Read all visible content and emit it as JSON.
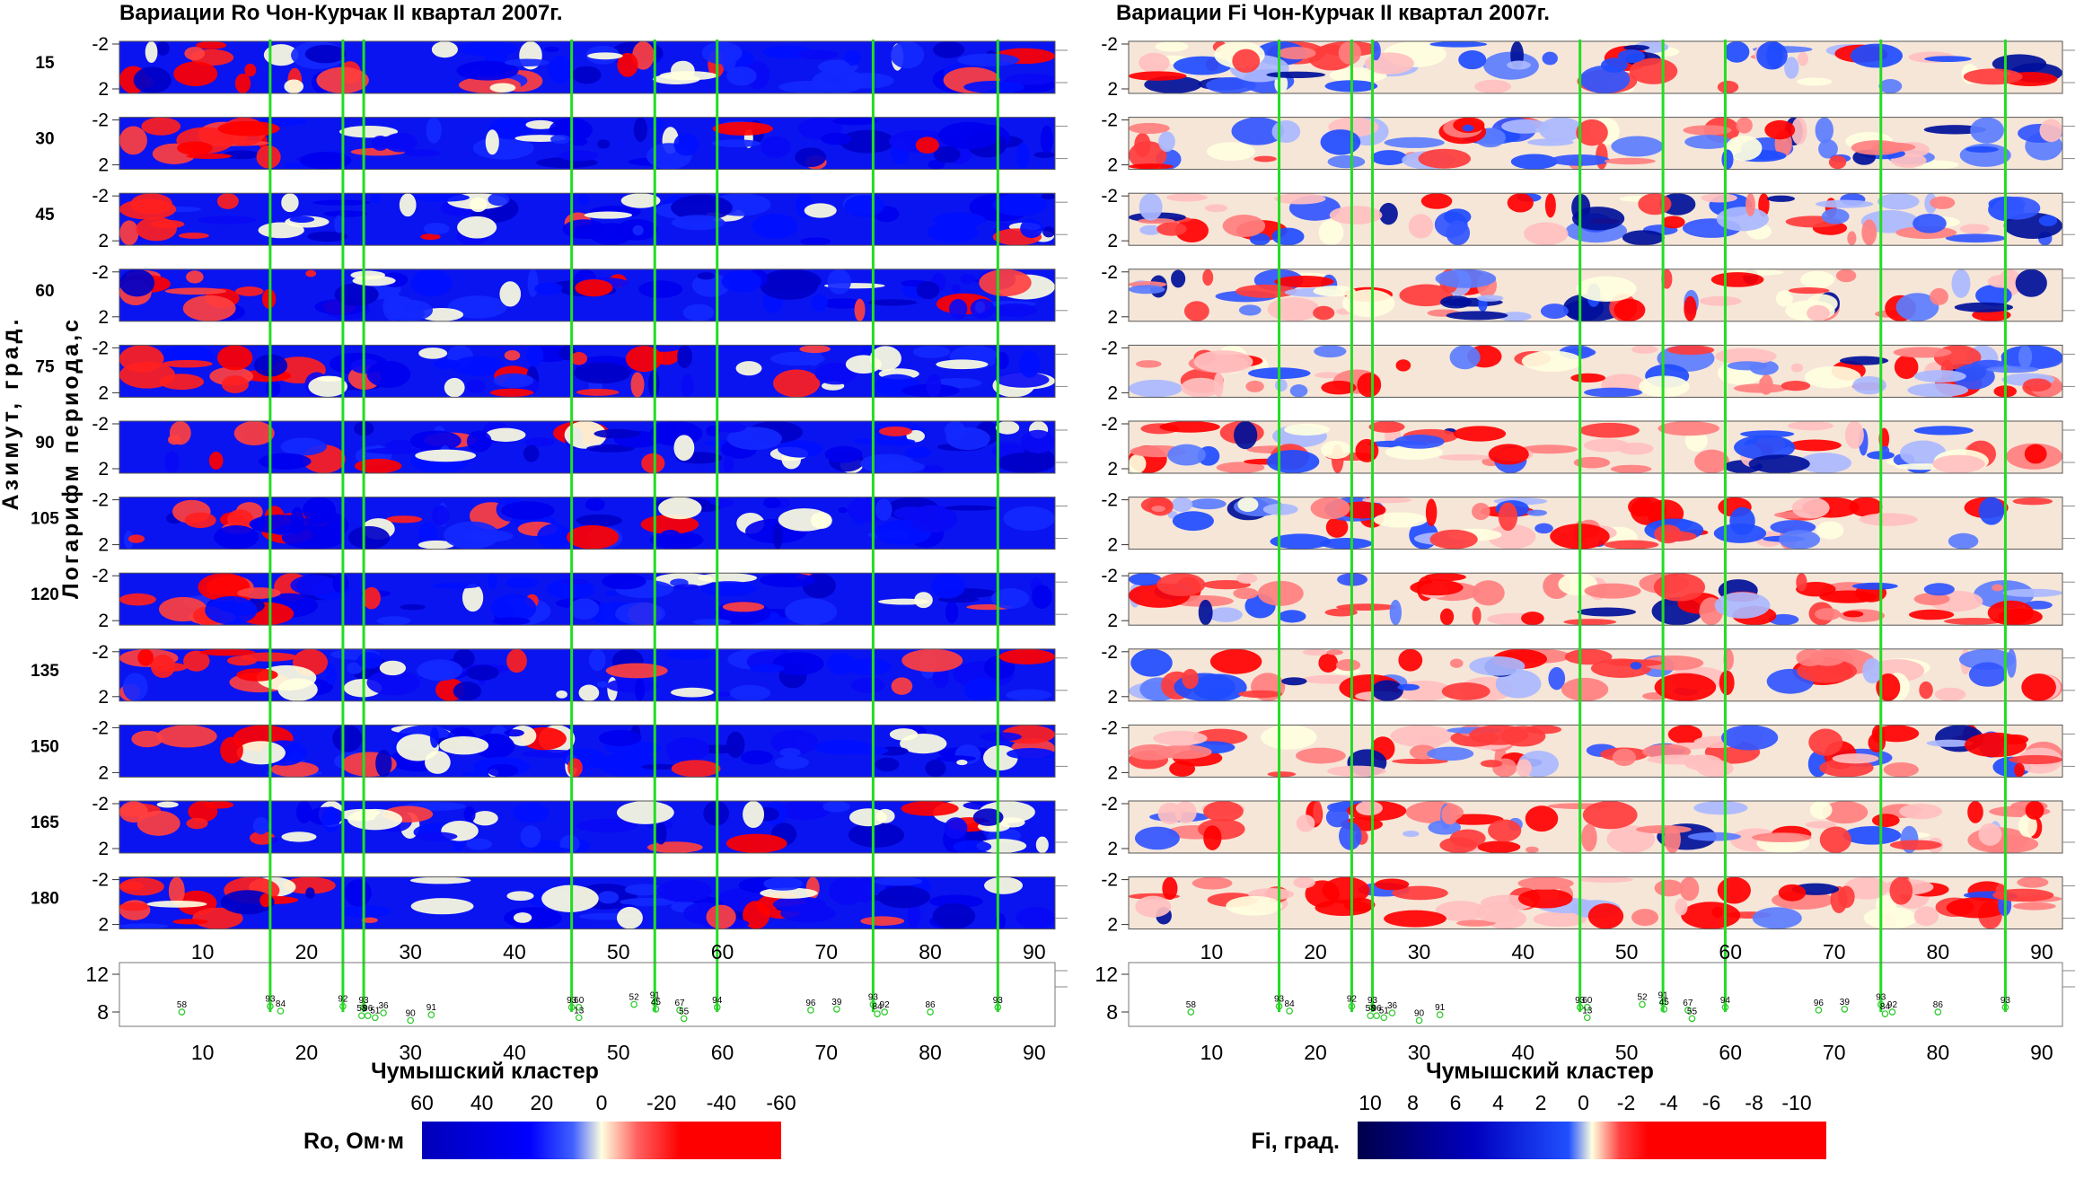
{
  "chart_data": [
    {
      "type": "heatmap",
      "title": "Вариации Ro Чон-Курчак II квартал 2007г.",
      "quantity": "Ro",
      "xlabel": "Чумышский кластер",
      "ylabel_outer": "Азимут, град.",
      "ylabel_inner": "Логарифм периода,с",
      "row_labels": [
        "15",
        "30",
        "45",
        "60",
        "75",
        "90",
        "105",
        "120",
        "135",
        "150",
        "165",
        "180"
      ],
      "row_tick_labels": [
        "-2",
        "2"
      ],
      "x_tick_labels": [
        "10",
        "20",
        "30",
        "40",
        "50",
        "60",
        "70",
        "80",
        "90"
      ],
      "event_y_tick_labels": [
        "12",
        "8"
      ],
      "colorbar": {
        "label": "Ro, Ом·м",
        "tick_labels": [
          "60",
          "40",
          "20",
          "0",
          "-20",
          "-40",
          "-60"
        ],
        "colors": [
          "#0000b8",
          "#0000f0",
          "#1b2cff",
          "#ffffe0",
          "#ff5555",
          "#ff0000",
          "#ff0000"
        ]
      }
    },
    {
      "type": "heatmap",
      "title": "Вариации Fi Чон-Курчак II квартал 2007г.",
      "quantity": "Fi",
      "xlabel": "Чумышский кластер",
      "ylabel_outer": "",
      "ylabel_inner": "",
      "row_labels": [
        "",
        "",
        "",
        "",
        "",
        "",
        "",
        "",
        "",
        "",
        "",
        ""
      ],
      "row_tick_labels": [
        "-2",
        "2"
      ],
      "x_tick_labels": [
        "10",
        "20",
        "30",
        "40",
        "50",
        "60",
        "70",
        "80",
        "90"
      ],
      "event_y_tick_labels": [
        "12",
        "8"
      ],
      "colorbar": {
        "label": "Fi, град.",
        "tick_labels": [
          "10",
          "8",
          "6",
          "4",
          "2",
          "0",
          "-2",
          "-4",
          "-6",
          "-8",
          "-10"
        ],
        "colors": [
          "#000050",
          "#00009a",
          "#0000d8",
          "#0000ff",
          "#2060ff",
          "#ffffe0",
          "#ff3030",
          "#ff0000",
          "#ff0000",
          "#ff0000",
          "#ff0000"
        ]
      }
    }
  ],
  "x_range": [
    2,
    92
  ],
  "marker_lines_x": [
    16.5,
    23.5,
    25.5,
    45.5,
    53.5,
    59.5,
    74.5,
    86.5
  ],
  "events": [
    {
      "label": "58",
      "x": 8,
      "y": 8.0
    },
    {
      "label": "93",
      "x": 16.5,
      "y": 8.6
    },
    {
      "label": "84",
      "x": 17.5,
      "y": 8.1
    },
    {
      "label": "92",
      "x": 23.5,
      "y": 8.6
    },
    {
      "label": "93",
      "x": 25.5,
      "y": 8.5
    },
    {
      "label": "58",
      "x": 25.3,
      "y": 7.6
    },
    {
      "label": "96",
      "x": 25.9,
      "y": 7.6
    },
    {
      "label": "51",
      "x": 26.6,
      "y": 7.4
    },
    {
      "label": "36",
      "x": 27.4,
      "y": 7.9
    },
    {
      "label": "90",
      "x": 30,
      "y": 7.1
    },
    {
      "label": "91",
      "x": 32,
      "y": 7.7
    },
    {
      "label": "93",
      "x": 45.5,
      "y": 8.5
    },
    {
      "label": "60",
      "x": 46.2,
      "y": 8.5
    },
    {
      "label": "13",
      "x": 46.2,
      "y": 7.4
    },
    {
      "label": "52",
      "x": 51.5,
      "y": 8.8
    },
    {
      "label": "91",
      "x": 53.5,
      "y": 9.0
    },
    {
      "label": "45",
      "x": 53.6,
      "y": 8.3
    },
    {
      "label": "67",
      "x": 55.9,
      "y": 8.2
    },
    {
      "label": "55",
      "x": 56.3,
      "y": 7.3
    },
    {
      "label": "94",
      "x": 59.5,
      "y": 8.5
    },
    {
      "label": "96",
      "x": 68.5,
      "y": 8.2
    },
    {
      "label": "39",
      "x": 71,
      "y": 8.3
    },
    {
      "label": "93",
      "x": 74.5,
      "y": 8.8
    },
    {
      "label": "84",
      "x": 74.9,
      "y": 7.8
    },
    {
      "label": "92",
      "x": 75.6,
      "y": 8.0
    },
    {
      "label": "86",
      "x": 80,
      "y": 8.0
    },
    {
      "label": "93",
      "x": 86.5,
      "y": 8.5
    }
  ]
}
